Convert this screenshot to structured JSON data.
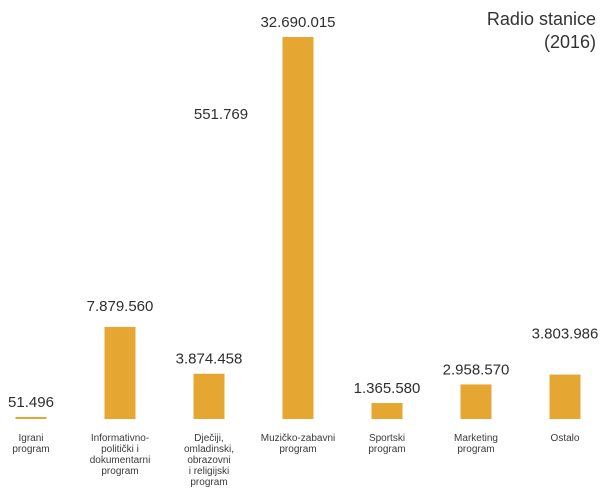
{
  "chart_data": {
    "type": "bar",
    "title_lines": [
      "Radio stanice",
      "(2016)"
    ],
    "categories": [
      [
        "Igrani",
        "program"
      ],
      [
        "Informativno-",
        "politički i",
        "dokumentarni",
        "program"
      ],
      [
        "Dječiji,",
        "omladinski,",
        "obrazovni",
        "i religijski",
        "program"
      ],
      [
        "Muzičko-zabavni",
        "program"
      ],
      [
        "Sportski",
        "program"
      ],
      [
        "Marketing",
        "program"
      ],
      [
        "Ostalo"
      ]
    ],
    "values": [
      51496,
      7879560,
      3874458,
      32690015,
      1365580,
      2958570,
      3803986
    ],
    "value_labels": [
      "51.496",
      "7.879.560",
      "3.874.458",
      "32.690.015",
      "1.365.580",
      "2.958.570",
      "3.803.986"
    ],
    "annotation": "551.769",
    "bar_color": "#E6A632",
    "grid": false,
    "legend": "none"
  }
}
